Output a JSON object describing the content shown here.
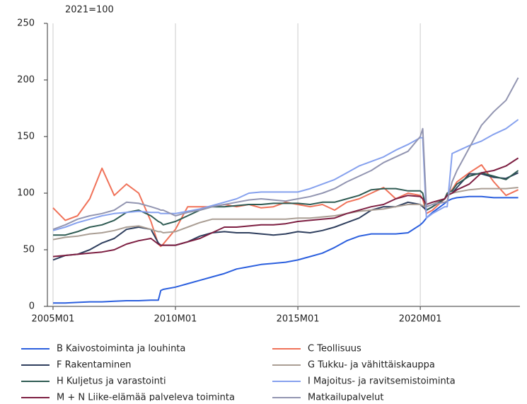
{
  "chart_data": {
    "type": "line",
    "subtitle": "2021=100",
    "x": [
      2005,
      2005.5,
      2006,
      2006.5,
      2007,
      2007.5,
      2008,
      2008.5,
      2009,
      2009.3,
      2009.4,
      2009.5,
      2010,
      2010.5,
      2011,
      2011.5,
      2012,
      2012.5,
      2013,
      2013.5,
      2014,
      2014.5,
      2015,
      2015.5,
      2016,
      2016.5,
      2017,
      2017.5,
      2018,
      2018.5,
      2019,
      2019.5,
      2020,
      2020.1,
      2020.25,
      2020.5,
      2021,
      2021.1,
      2021.3,
      2021.5,
      2022,
      2022.5,
      2023,
      2023.5,
      2024
    ],
    "xlim": [
      2004.77,
      2024.07
    ],
    "xticks": [
      {
        "value": 2005,
        "label": "2005M01"
      },
      {
        "value": 2010,
        "label": "2010M01"
      },
      {
        "value": 2015,
        "label": "2015M01"
      },
      {
        "value": 2020,
        "label": "2020M01"
      }
    ],
    "ylim": [
      0,
      250
    ],
    "yticks": [
      0,
      50,
      100,
      150,
      200,
      250
    ],
    "grid": "x",
    "legend": "bottom",
    "series": [
      {
        "name": "B Kaivostoiminta ja louhinta",
        "color": "#2b5fde",
        "values": [
          3,
          3,
          3.5,
          4,
          4,
          4.5,
          5,
          5,
          5.5,
          5.5,
          14,
          15,
          17,
          20,
          23,
          26,
          29,
          33,
          35,
          37,
          38,
          39,
          41,
          44,
          47,
          52,
          58,
          62,
          64,
          64,
          64,
          65,
          72,
          74,
          78,
          83,
          91,
          93,
          95,
          96,
          97,
          97,
          96,
          96,
          96
        ]
      },
      {
        "name": "C Teollisuus",
        "color": "#f07259",
        "values": [
          87,
          76,
          80,
          95,
          122,
          98,
          108,
          100,
          75,
          55,
          53,
          55,
          68,
          88,
          88,
          88,
          90,
          88,
          90,
          87,
          88,
          92,
          90,
          88,
          90,
          85,
          92,
          95,
          100,
          105,
          95,
          100,
          98,
          95,
          82,
          85,
          95,
          100,
          103,
          110,
          118,
          125,
          110,
          98,
          103
        ]
      },
      {
        "name": "F Rakentaminen",
        "color": "#2f3f5e",
        "values": [
          41,
          45,
          46,
          50,
          56,
          60,
          68,
          70,
          68,
          56,
          54,
          54,
          54,
          57,
          62,
          65,
          66,
          65,
          65,
          64,
          63,
          64,
          66,
          65,
          67,
          70,
          74,
          78,
          85,
          88,
          88,
          92,
          90,
          88,
          85,
          88,
          95,
          98,
          100,
          105,
          117,
          117,
          114,
          113,
          118
        ]
      },
      {
        "name": "G Tukku- ja vähittäiskauppa",
        "color": "#aa9e94",
        "values": [
          59,
          61,
          62,
          64,
          65,
          67,
          70,
          71,
          68,
          66,
          66,
          65,
          66,
          70,
          74,
          77,
          77,
          77,
          77,
          77,
          77,
          77,
          78,
          78,
          79,
          80,
          82,
          84,
          85,
          86,
          88,
          90,
          90,
          89,
          88,
          90,
          95,
          98,
          100,
          101,
          103,
          104,
          104,
          104,
          105
        ]
      },
      {
        "name": "H Kuljetus ja varastointi",
        "color": "#2f5b53",
        "values": [
          63,
          63,
          66,
          70,
          72,
          76,
          83,
          85,
          80,
          75,
          74,
          72,
          75,
          80,
          85,
          88,
          88,
          89,
          90,
          90,
          91,
          91,
          91,
          90,
          92,
          92,
          95,
          98,
          103,
          104,
          104,
          102,
          102,
          100,
          85,
          88,
          95,
          100,
          102,
          108,
          115,
          118,
          115,
          112,
          120
        ]
      },
      {
        "name": "I Majoitus- ja ravitsemistoiminta",
        "color": "#86a1ee",
        "values": [
          67,
          70,
          74,
          77,
          80,
          82,
          83,
          84,
          83,
          83,
          82,
          82,
          82,
          84,
          86,
          89,
          92,
          95,
          100,
          101,
          101,
          101,
          101,
          104,
          108,
          112,
          118,
          124,
          128,
          132,
          138,
          143,
          149,
          149,
          78,
          82,
          88,
          88,
          135,
          137,
          142,
          146,
          152,
          157,
          165
        ]
      },
      {
        "name": "M + N Liike-elämää palveleva toiminta",
        "color": "#7d1f42",
        "values": [
          44,
          45,
          46,
          47,
          48,
          50,
          55,
          58,
          60,
          55,
          54,
          54,
          54,
          57,
          60,
          65,
          70,
          70,
          71,
          72,
          72,
          73,
          75,
          76,
          77,
          78,
          82,
          85,
          88,
          90,
          95,
          98,
          97,
          95,
          90,
          92,
          95,
          98,
          100,
          103,
          108,
          118,
          120,
          124,
          131
        ]
      },
      {
        "name": "Matkailupalvelut",
        "color": "#9295b1",
        "values": [
          68,
          72,
          77,
          80,
          82,
          85,
          92,
          91,
          88,
          86,
          85,
          85,
          80,
          83,
          85,
          88,
          90,
          92,
          94,
          95,
          94,
          93,
          95,
          97,
          100,
          104,
          110,
          115,
          120,
          127,
          132,
          137,
          150,
          157,
          88,
          90,
          92,
          93,
          110,
          120,
          140,
          160,
          172,
          182,
          202
        ]
      }
    ]
  }
}
